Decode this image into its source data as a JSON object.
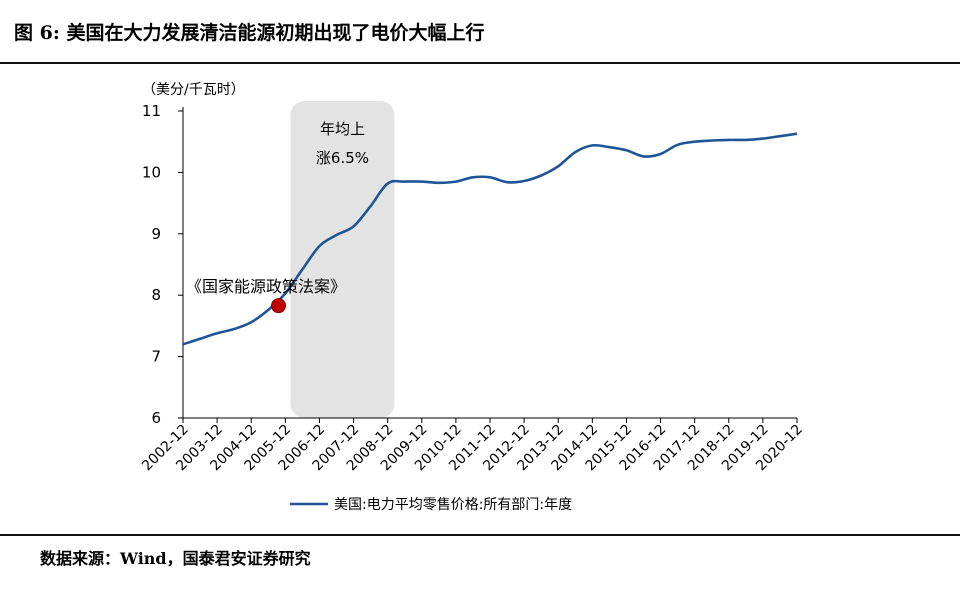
{
  "figure": {
    "title": "图 6:  美国在大力发展清洁能源初期出现了电价大幅上行",
    "source": "数据来源：Wind，国泰君安证券研究"
  },
  "chart_data": {
    "type": "line",
    "unit_label": "（美分/千瓦时）",
    "ylim": [
      6,
      11
    ],
    "yticks": [
      6,
      7,
      8,
      9,
      10,
      11
    ],
    "categories": [
      "2002-12",
      "2003-12",
      "2004-12",
      "2005-12",
      "2006-12",
      "2007-12",
      "2008-12",
      "2009-12",
      "2010-12",
      "2011-12",
      "2012-12",
      "2013-12",
      "2014-12",
      "2015-12",
      "2016-12",
      "2017-12",
      "2018-12",
      "2019-12",
      "2020-12"
    ],
    "series": [
      {
        "name": "美国:电力平均零售价格:所有部门:年度",
        "color": "#1f5597",
        "x": [
          2002.0,
          2002.5,
          2003.0,
          2003.5,
          2004.0,
          2004.5,
          2005.0,
          2005.5,
          2006.0,
          2006.5,
          2007.0,
          2007.5,
          2008.0,
          2008.5,
          2009.0,
          2009.5,
          2010.0,
          2010.5,
          2011.0,
          2011.5,
          2012.0,
          2012.5,
          2013.0,
          2013.5,
          2014.0,
          2014.5,
          2015.0,
          2015.5,
          2016.0,
          2016.5,
          2017.0,
          2017.5,
          2018.0,
          2018.5,
          2019.0,
          2019.5,
          2020.0
        ],
        "values": [
          7.2,
          7.29,
          7.38,
          7.45,
          7.56,
          7.76,
          8.03,
          8.42,
          8.8,
          8.98,
          9.12,
          9.45,
          9.82,
          9.85,
          9.85,
          9.83,
          9.85,
          9.92,
          9.92,
          9.84,
          9.86,
          9.95,
          10.1,
          10.33,
          10.44,
          10.41,
          10.36,
          10.26,
          10.3,
          10.45,
          10.5,
          10.52,
          10.53,
          10.53,
          10.55,
          10.59,
          10.63
        ]
      }
    ],
    "highlight_band": {
      "x_range": [
        2005.15,
        2008.2
      ],
      "color": "#e3e3e3",
      "label_line1": "年均上",
      "label_line2": "涨6.5%"
    },
    "marker": {
      "x": 2004.8,
      "y": 7.83,
      "color": "#c00000",
      "label": "《国家能源政策法案》"
    },
    "legend": {
      "position": "bottom"
    }
  }
}
